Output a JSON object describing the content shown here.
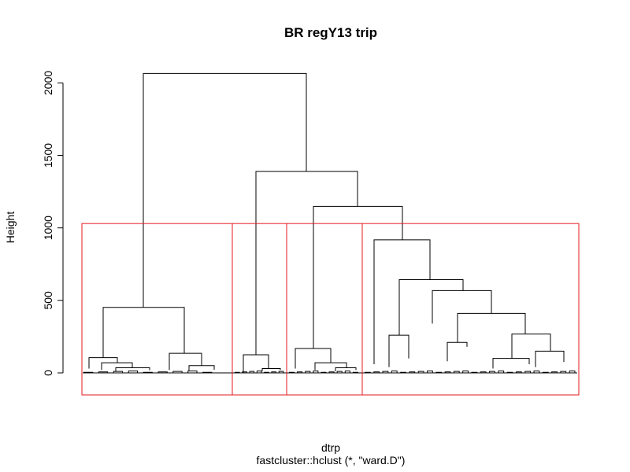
{
  "chart_data": {
    "type": "dendrogram",
    "title": "BR regY13  trip",
    "xlabel": "dtrp",
    "sub": "fastcluster::hclust (*, \"ward.D\")",
    "ylabel": "Height",
    "ylim": [
      0,
      2050
    ],
    "yticks": [
      0,
      500,
      1000,
      1500,
      2000
    ],
    "cut_height": 1030,
    "cluster_count": 4,
    "merges": [
      {
        "name": "root",
        "height": 2065
      },
      {
        "name": "right-group",
        "height": 1390
      },
      {
        "name": "right-sub",
        "height": 1148
      },
      {
        "name": "cluster-4-top",
        "height": 918
      },
      {
        "name": "cluster-1-top",
        "height": 452
      },
      {
        "name": "cluster-4-sub-a",
        "height": 643
      },
      {
        "name": "cluster-4-sub-b",
        "height": 568
      },
      {
        "name": "cluster-4-sub-c",
        "height": 410
      },
      {
        "name": "cluster-4-sub-d",
        "height": 268
      },
      {
        "name": "cluster-3-top",
        "height": 168
      },
      {
        "name": "cluster-2-top",
        "height": 125
      },
      {
        "name": "cluster-1-right",
        "height": 135
      },
      {
        "name": "cluster-1-left",
        "height": 105
      }
    ],
    "colors": {
      "tree": "#000000",
      "cluster_box": "#e41a1c"
    }
  }
}
